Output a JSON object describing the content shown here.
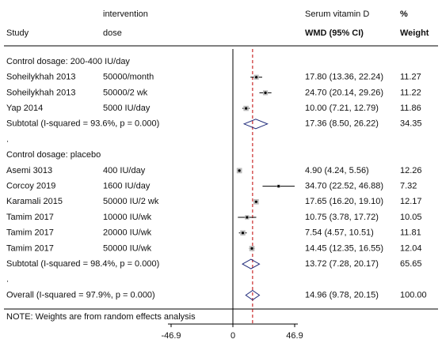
{
  "chart_data": {
    "type": "forest",
    "headers": {
      "study": "Study",
      "dose_top": "intervention",
      "dose": "dose",
      "effect_top": "Serum vitamin D",
      "effect": "WMD (95% CI)",
      "weight_top": "%",
      "weight": "Weight"
    },
    "rows": [
      {
        "kind": "group",
        "label": "Control dosage: 200-400 IU/day"
      },
      {
        "kind": "study",
        "label": "Soheilykhah 2013",
        "dose": "50000/month",
        "estimate": 17.8,
        "ci": [
          13.36,
          22.24
        ],
        "value_label": "17.80 (13.36, 22.24)",
        "weight": 11.27
      },
      {
        "kind": "study",
        "label": "Soheilykhah 2013",
        "dose": "50000/2 wk",
        "estimate": 24.7,
        "ci": [
          20.14,
          29.26
        ],
        "value_label": "24.70 (20.14, 29.26)",
        "weight": 11.22
      },
      {
        "kind": "study",
        "label": "Yap 2014",
        "dose": "5000 IU/day",
        "estimate": 10,
        "ci": [
          7.21,
          12.79
        ],
        "value_label": "10.00 (7.21, 12.79)",
        "weight": 11.86
      },
      {
        "kind": "subtotal",
        "label": "Subtotal  (I-squared = 93.6%, p = 0.000)",
        "estimate": 17.36,
        "ci": [
          8.5,
          26.22
        ],
        "value_label": "17.36 (8.50, 26.22)",
        "weight": 34.35
      },
      {
        "kind": "spacer",
        "label": "."
      },
      {
        "kind": "group",
        "label": "Control dosage: placebo"
      },
      {
        "kind": "study",
        "label": "Asemi 3013",
        "dose": "400 IU/day",
        "estimate": 4.9,
        "ci": [
          4.24,
          5.56
        ],
        "value_label": "4.90 (4.24, 5.56)",
        "weight": 12.26
      },
      {
        "kind": "study",
        "label": "Corcoy 2019",
        "dose": "1600 IU/day",
        "estimate": 34.7,
        "ci": [
          22.52,
          46.88
        ],
        "value_label": "34.70 (22.52, 46.88)",
        "weight": 7.32
      },
      {
        "kind": "study",
        "label": "Karamali 2015",
        "dose": "50000 IU/2 wk",
        "estimate": 17.65,
        "ci": [
          16.2,
          19.1
        ],
        "value_label": "17.65 (16.20, 19.10)",
        "weight": 12.17
      },
      {
        "kind": "study",
        "label": "Tamim 2017",
        "dose": "10000 IU/wk",
        "estimate": 10.75,
        "ci": [
          3.78,
          17.72
        ],
        "value_label": "10.75 (3.78, 17.72)",
        "weight": 10.05
      },
      {
        "kind": "study",
        "label": "Tamim 2017",
        "dose": "20000 IU/wk",
        "estimate": 7.54,
        "ci": [
          4.57,
          10.51
        ],
        "value_label": "7.54 (4.57, 10.51)",
        "weight": 11.81
      },
      {
        "kind": "study",
        "label": "Tamim 2017",
        "dose": "50000 IU/wk",
        "estimate": 14.45,
        "ci": [
          12.35,
          16.55
        ],
        "value_label": "14.45 (12.35, 16.55)",
        "weight": 12.04
      },
      {
        "kind": "subtotal",
        "label": "Subtotal  (I-squared = 98.4%, p = 0.000)",
        "estimate": 13.72,
        "ci": [
          7.28,
          20.17
        ],
        "value_label": "13.72 (7.28, 20.17)",
        "weight": 65.65
      },
      {
        "kind": "spacer",
        "label": "."
      },
      {
        "kind": "overall",
        "label": "Overall  (I-squared = 97.9%, p = 0.000)",
        "estimate": 14.96,
        "ci": [
          9.78,
          20.15
        ],
        "value_label": "14.96 (9.78, 20.15)",
        "weight": {
          "value": 100,
          "label": "100.00"
        }
      }
    ],
    "note": "NOTE: Weights are from random effects analysis",
    "xlim": [
      -46.9,
      46.9
    ],
    "xticks": [
      -46.9,
      0,
      46.9
    ],
    "diamond_color": "#1f2a7a",
    "reference_color": "#c00000"
  }
}
